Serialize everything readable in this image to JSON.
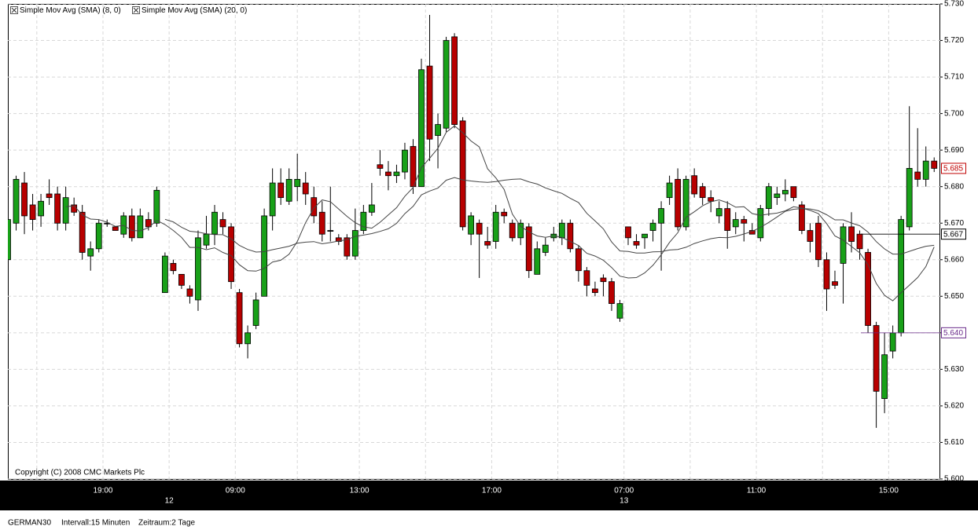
{
  "chart_data": {
    "type": "candlestick",
    "legend": [
      "Simple Mov Avg (SMA) (8, 0)",
      "Simple Mov Avg (SMA) (20, 0)"
    ],
    "sma_periods": [
      8,
      20
    ],
    "annotation": "Copyright (C) 2008 CMC Markets Plc",
    "categories": [
      null,
      null,
      null,
      null,
      null,
      null,
      null,
      null,
      null,
      null,
      null,
      null,
      "19:00",
      null,
      null,
      null,
      null,
      null,
      null,
      null,
      null,
      null,
      null,
      null,
      null,
      null,
      null,
      null,
      "09:00",
      null,
      null,
      null,
      null,
      null,
      null,
      null,
      null,
      null,
      null,
      null,
      null,
      null,
      null,
      "13:00",
      null,
      null,
      null,
      null,
      null,
      null,
      null,
      null,
      null,
      null,
      null,
      null,
      null,
      null,
      null,
      "17:00",
      null,
      null,
      null,
      null,
      null,
      null,
      null,
      null,
      null,
      null,
      null,
      null,
      null,
      null,
      null,
      "07:00",
      null,
      null,
      null,
      null,
      null,
      null,
      null,
      null,
      null,
      null,
      null,
      null,
      null,
      null,
      null,
      "11:00",
      null,
      null,
      null,
      null,
      null,
      null,
      null,
      null,
      null,
      null,
      null,
      null,
      null,
      null,
      null,
      "15:00",
      null,
      null,
      null,
      null,
      null
    ],
    "date_labels": [
      null,
      null,
      null,
      null,
      null,
      null,
      null,
      null,
      null,
      null,
      null,
      null,
      null,
      null,
      null,
      null,
      null,
      null,
      null,
      null,
      "12",
      null,
      null,
      null,
      null,
      null,
      null,
      null,
      null,
      null,
      null,
      null,
      null,
      null,
      null,
      null,
      null,
      null,
      null,
      null,
      null,
      null,
      null,
      null,
      null,
      null,
      null,
      null,
      null,
      null,
      null,
      null,
      null,
      null,
      null,
      null,
      null,
      null,
      null,
      null,
      null,
      null,
      null,
      null,
      null,
      null,
      null,
      null,
      null,
      null,
      null,
      null,
      null,
      null,
      null,
      "13",
      null,
      null,
      null,
      null,
      null,
      null,
      null,
      null,
      null,
      null,
      null,
      null,
      null,
      null,
      null,
      null,
      null,
      null,
      null,
      null,
      null,
      null,
      null,
      null,
      null,
      null,
      null,
      null,
      null,
      null,
      null,
      null,
      null,
      null,
      null,
      null,
      null
    ],
    "open": [
      5660,
      5670,
      5681,
      5675,
      5672,
      5678,
      5678,
      5670,
      5675,
      5673,
      5661,
      5663,
      5670,
      5669,
      5667,
      5672,
      5666,
      5671,
      5670,
      5651,
      5659,
      5656,
      5652,
      5649,
      5664,
      5667,
      5671,
      5669,
      5651,
      5637,
      5642,
      5650,
      5672,
      5681,
      5676,
      5680,
      5681,
      5677,
      5673,
      5668,
      5666,
      5666,
      5661,
      5668,
      5673,
      5686,
      5684,
      5683,
      5684,
      5691,
      5680,
      5713,
      5694,
      5696,
      5721,
      5698,
      5667,
      5670,
      5665,
      5665,
      5673,
      5670,
      5666,
      5669,
      5656,
      5662,
      5666,
      5666,
      5670,
      5663,
      5657,
      5652,
      5655,
      5654,
      5644,
      5669,
      5665,
      5666,
      5668,
      5670,
      5677,
      5682,
      5669,
      5683,
      5680,
      5677,
      5672,
      5674,
      5669,
      5671,
      5668,
      5666,
      5674,
      5677,
      5678,
      5680,
      5675,
      5668,
      5670,
      5660,
      5654,
      5659,
      5669,
      5667,
      5662,
      5642,
      5622,
      5635,
      5640,
      5669,
      5684,
      5682,
      5687
    ],
    "high": [
      5672,
      5683,
      5684,
      5678,
      5678,
      5682,
      5680,
      5680,
      5677,
      5675,
      5665,
      5671,
      5671,
      5669,
      5673,
      5674,
      5674,
      5673,
      5680,
      5662,
      5660,
      5656,
      5653,
      5668,
      5672,
      5675,
      5673,
      5670,
      5652,
      5642,
      5651,
      5674,
      5685,
      5685,
      5685,
      5689,
      5684,
      5680,
      5676,
      5680,
      5667,
      5667,
      5674,
      5675,
      5681,
      5690,
      5687,
      5686,
      5692,
      5693,
      5715,
      5727,
      5700,
      5721,
      5722,
      5699,
      5673,
      5671,
      5669,
      5675,
      5674,
      5671,
      5671,
      5670,
      5665,
      5666,
      5669,
      5671,
      5671,
      5664,
      5658,
      5654,
      5656,
      5655,
      5649,
      5669,
      5667,
      5667,
      5671,
      5676,
      5683,
      5685,
      5683,
      5685,
      5681,
      5679,
      5676,
      5676,
      5673,
      5672,
      5670,
      5675,
      5681,
      5680,
      5682,
      5680,
      5676,
      5670,
      5672,
      5662,
      5657,
      5670,
      5673,
      5668,
      5663,
      5643,
      5640,
      5642,
      5672,
      5702,
      5696,
      5691,
      5688
    ],
    "low": [
      5652,
      5668,
      5667,
      5668,
      5669,
      5675,
      5668,
      5668,
      5672,
      5660,
      5657,
      5662,
      5669,
      5668,
      5666,
      5665,
      5666,
      5668,
      5669,
      5651,
      5656,
      5652,
      5648,
      5646,
      5663,
      5664,
      5667,
      5652,
      5636,
      5633,
      5641,
      5650,
      5668,
      5675,
      5675,
      5676,
      5675,
      5670,
      5665,
      5665,
      5664,
      5660,
      5660,
      5667,
      5672,
      5683,
      5679,
      5681,
      5682,
      5678,
      5680,
      5687,
      5685,
      5695,
      5696,
      5668,
      5664,
      5655,
      5663,
      5663,
      5670,
      5665,
      5664,
      5655,
      5656,
      5661,
      5665,
      5664,
      5662,
      5654,
      5650,
      5650,
      5650,
      5646,
      5643,
      5664,
      5663,
      5663,
      5665,
      5657,
      5675,
      5668,
      5668,
      5677,
      5675,
      5673,
      5670,
      5663,
      5667,
      5665,
      5667,
      5665,
      5672,
      5675,
      5676,
      5676,
      5667,
      5662,
      5658,
      5646,
      5652,
      5648,
      5662,
      5660,
      5640,
      5614,
      5618,
      5633,
      5639,
      5668,
      5680,
      5680,
      5684
    ],
    "close": [
      5671,
      5682,
      5672,
      5671,
      5676,
      5677,
      5670,
      5677,
      5673,
      5662,
      5663,
      5670,
      5670,
      5668,
      5672,
      5666,
      5672,
      5669,
      5679,
      5661,
      5657,
      5653,
      5650,
      5666,
      5667,
      5673,
      5669,
      5654,
      5637,
      5640,
      5649,
      5672,
      5681,
      5677,
      5682,
      5682,
      5678,
      5672,
      5667,
      5668,
      5665,
      5661,
      5668,
      5673,
      5675,
      5685,
      5683,
      5684,
      5690,
      5680,
      5712,
      5693,
      5697,
      5720,
      5697,
      5669,
      5672,
      5667,
      5664,
      5673,
      5672,
      5666,
      5670,
      5657,
      5663,
      5664,
      5667,
      5670,
      5663,
      5657,
      5653,
      5651,
      5654,
      5648,
      5648,
      5666,
      5664,
      5667,
      5670,
      5674,
      5681,
      5669,
      5682,
      5678,
      5677,
      5676,
      5674,
      5668,
      5671,
      5670,
      5667,
      5674,
      5680,
      5678,
      5679,
      5677,
      5668,
      5665,
      5660,
      5652,
      5653,
      5669,
      5665,
      5663,
      5642,
      5624,
      5634,
      5640,
      5671,
      5685,
      5682,
      5687,
      5685
    ],
    "up_color": "#18a018",
    "down_color": "#b80000",
    "ylim": [
      5600,
      5730
    ],
    "yticks": [
      {
        "value": 5600,
        "label": "5.600"
      },
      {
        "value": 5610,
        "label": "5.610"
      },
      {
        "value": 5620,
        "label": "5.620"
      },
      {
        "value": 5630,
        "label": "5.630"
      },
      {
        "value": 5640,
        "label": "5.640"
      },
      {
        "value": 5650,
        "label": "5.650"
      },
      {
        "value": 5660,
        "label": "5.660"
      },
      {
        "value": 5670,
        "label": "5.670"
      },
      {
        "value": 5680,
        "label": "5.680"
      },
      {
        "value": 5690,
        "label": "5.690"
      },
      {
        "value": 5700,
        "label": "5.700"
      },
      {
        "value": 5710,
        "label": "5.710"
      },
      {
        "value": 5720,
        "label": "5.720"
      },
      {
        "value": 5730,
        "label": "5.730"
      }
    ],
    "price_markers": [
      {
        "value": 5685,
        "label": "5.685",
        "color": "#c00000"
      },
      {
        "value": 5667,
        "label": "5.667",
        "color": "#000000"
      },
      {
        "value": 5640,
        "label": "5.640",
        "color": "#6a2a8a"
      }
    ],
    "grid": true
  },
  "footer": {
    "instrument": "GERMAN30",
    "interval": "Intervall:15 Minuten",
    "period": "Zeitraum:2 Tage"
  }
}
